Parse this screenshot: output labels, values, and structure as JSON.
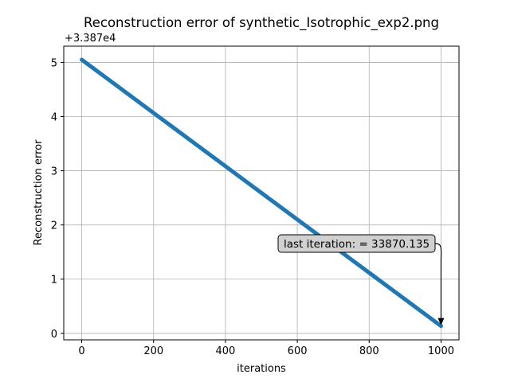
{
  "chart_data": {
    "type": "line",
    "title": "Reconstruction error of synthetic_Isotrophic_exp2.png",
    "xlabel": "iterations",
    "ylabel": "Reconstruction error",
    "offset_label": "+3.387e4",
    "y_offset": 33870,
    "xlim": [
      -50,
      1050
    ],
    "ylim": [
      -0.12,
      5.3
    ],
    "xticks": [
      0,
      200,
      400,
      600,
      800,
      1000
    ],
    "xtick_labels": [
      "0",
      "200",
      "400",
      "600",
      "800",
      "1000"
    ],
    "yticks": [
      0,
      1,
      2,
      3,
      4,
      5
    ],
    "ytick_labels": [
      "0",
      "1",
      "2",
      "3",
      "4",
      "5"
    ],
    "grid": true,
    "series": [
      {
        "color": "#1f77b4",
        "x": [
          0,
          1000
        ],
        "y": [
          5.05,
          0.135
        ]
      }
    ],
    "annotation": {
      "text": "last iteration: = 33870.135",
      "x": 1000,
      "y": 0.135
    }
  }
}
